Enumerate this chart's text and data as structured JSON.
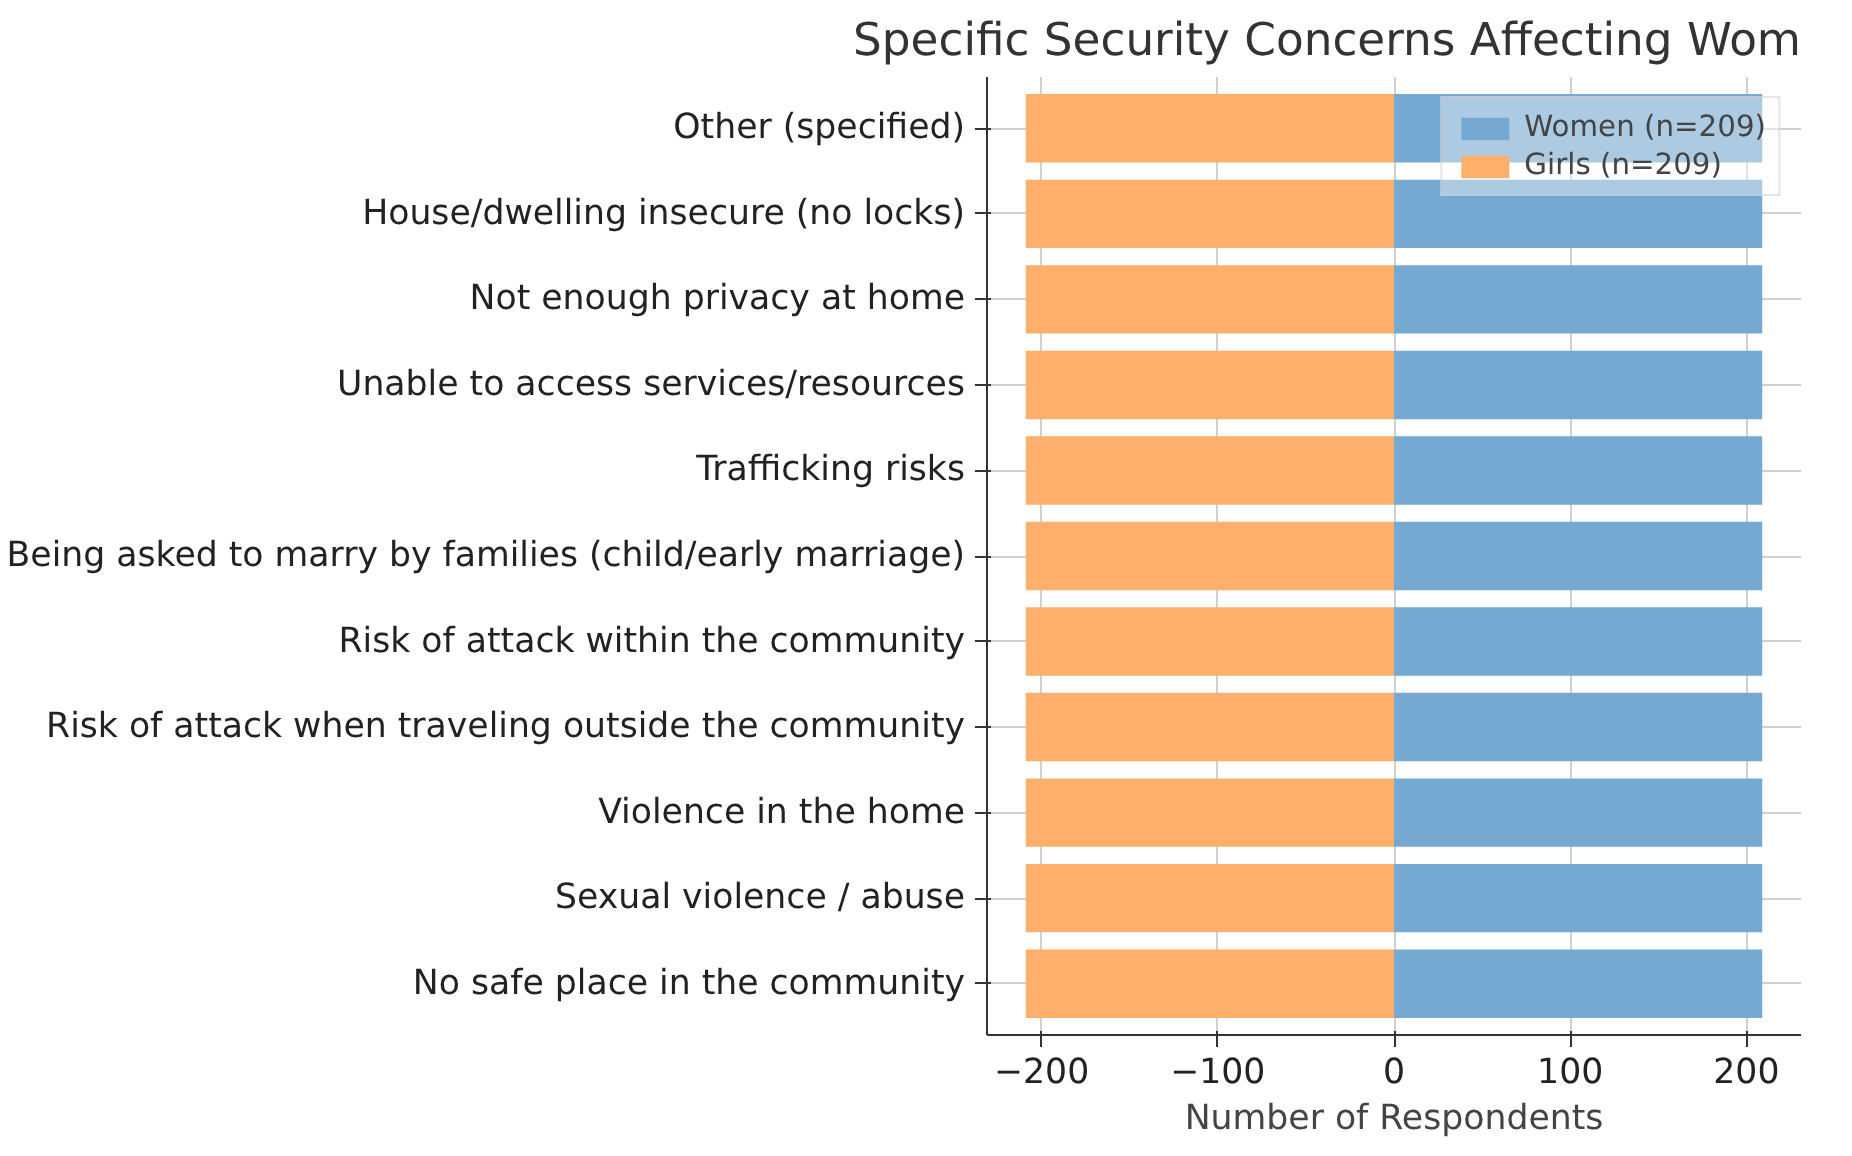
{
  "chart_data": {
    "type": "bar",
    "orientation": "horizontal",
    "stacked": true,
    "title": "Specific Security Concerns Affecting Wom",
    "xlabel": "Number of Respondents",
    "categories": [
      "Other (specified)",
      "House/dwelling insecure (no locks)",
      "Not enough privacy at home",
      "Unable to access services/resources",
      "Trafficking risks",
      "Being asked to marry by families (child/early marriage)",
      "Risk of attack within the community",
      "Risk of attack when traveling outside the community",
      "Violence in the home",
      "Sexual violence / abuse",
      "No safe place in the community"
    ],
    "series": [
      {
        "name": "Women (n=209)",
        "color": "#75a9d1",
        "values": [
          209,
          209,
          209,
          209,
          209,
          209,
          209,
          209,
          209,
          209,
          209
        ]
      },
      {
        "name": "Girls (n=209)",
        "color": "#fdaf6b",
        "values": [
          -209,
          -209,
          -209,
          -209,
          -209,
          -209,
          -209,
          -209,
          -209,
          -209,
          -209
        ]
      }
    ],
    "xlim": [
      -231,
      231
    ],
    "xticks": [
      {
        "value": -200,
        "label": "−200"
      },
      {
        "value": -100,
        "label": "−100"
      },
      0,
      100,
      200
    ],
    "grid": true,
    "legend": "top right"
  }
}
